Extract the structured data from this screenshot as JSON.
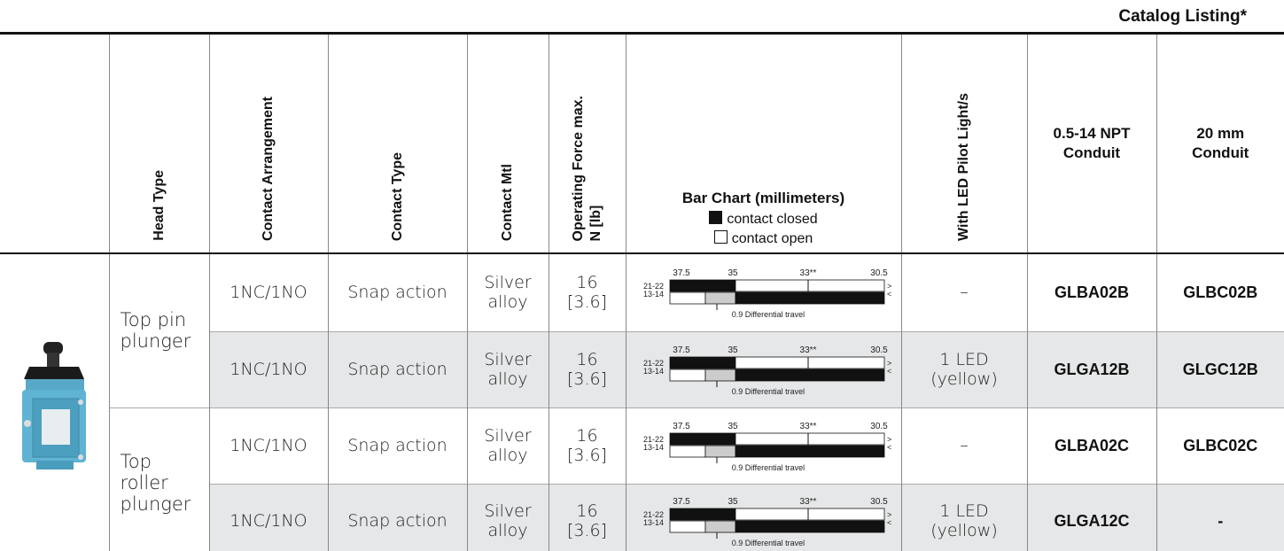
{
  "caption": "Catalog Listing*",
  "table": {
    "headers": [
      [
        "Head Type"
      ],
      [
        "Contact Arrangement"
      ],
      [
        "Contact Type"
      ],
      [
        "Contact Mtl"
      ],
      [
        "Operating Force  max.",
        "N [lb]"
      ],
      [
        "With LED Pilot Light/s"
      ],
      [
        "0.5-14 NPT",
        "Conduit"
      ],
      [
        "20 mm",
        "Conduit"
      ]
    ],
    "bar_chart_header": {
      "title": "Bar Chart (millimeters)",
      "legend": [
        "contact closed",
        "contact open"
      ]
    },
    "bar_chart": {
      "scale": [
        "37.5",
        "35",
        "33**",
        "30.5"
      ],
      "contacts": [
        "21-22",
        "13-14"
      ],
      "arrows": [
        ">",
        "<"
      ],
      "note": "0.9 Differential travel"
    },
    "groups": [
      {
        "head_type": "Top pin plunger",
        "rows": [
          [
            "1NC/1NO",
            "Snap action",
            "Silver alloy",
            "16 [3.6]",
            "–",
            "GLBA02B",
            "GLBC02B"
          ],
          [
            "1NC/1NO",
            "Snap action",
            "Silver alloy",
            "16 [3.6]",
            "1 LED (yellow)",
            "GLGA12B",
            "GLGC12B"
          ]
        ]
      },
      {
        "head_type": "Top roller plunger",
        "rows": [
          [
            "1NC/1NO",
            "Snap action",
            "Silver alloy",
            "16 [3.6]",
            "–",
            "GLBA02C",
            "GLBC02C"
          ],
          [
            "1NC/1NO",
            "Snap action",
            "Silver alloy",
            "16 [3.6]",
            "1 LED (yellow)",
            "GLGA12C",
            "-"
          ]
        ]
      }
    ]
  }
}
